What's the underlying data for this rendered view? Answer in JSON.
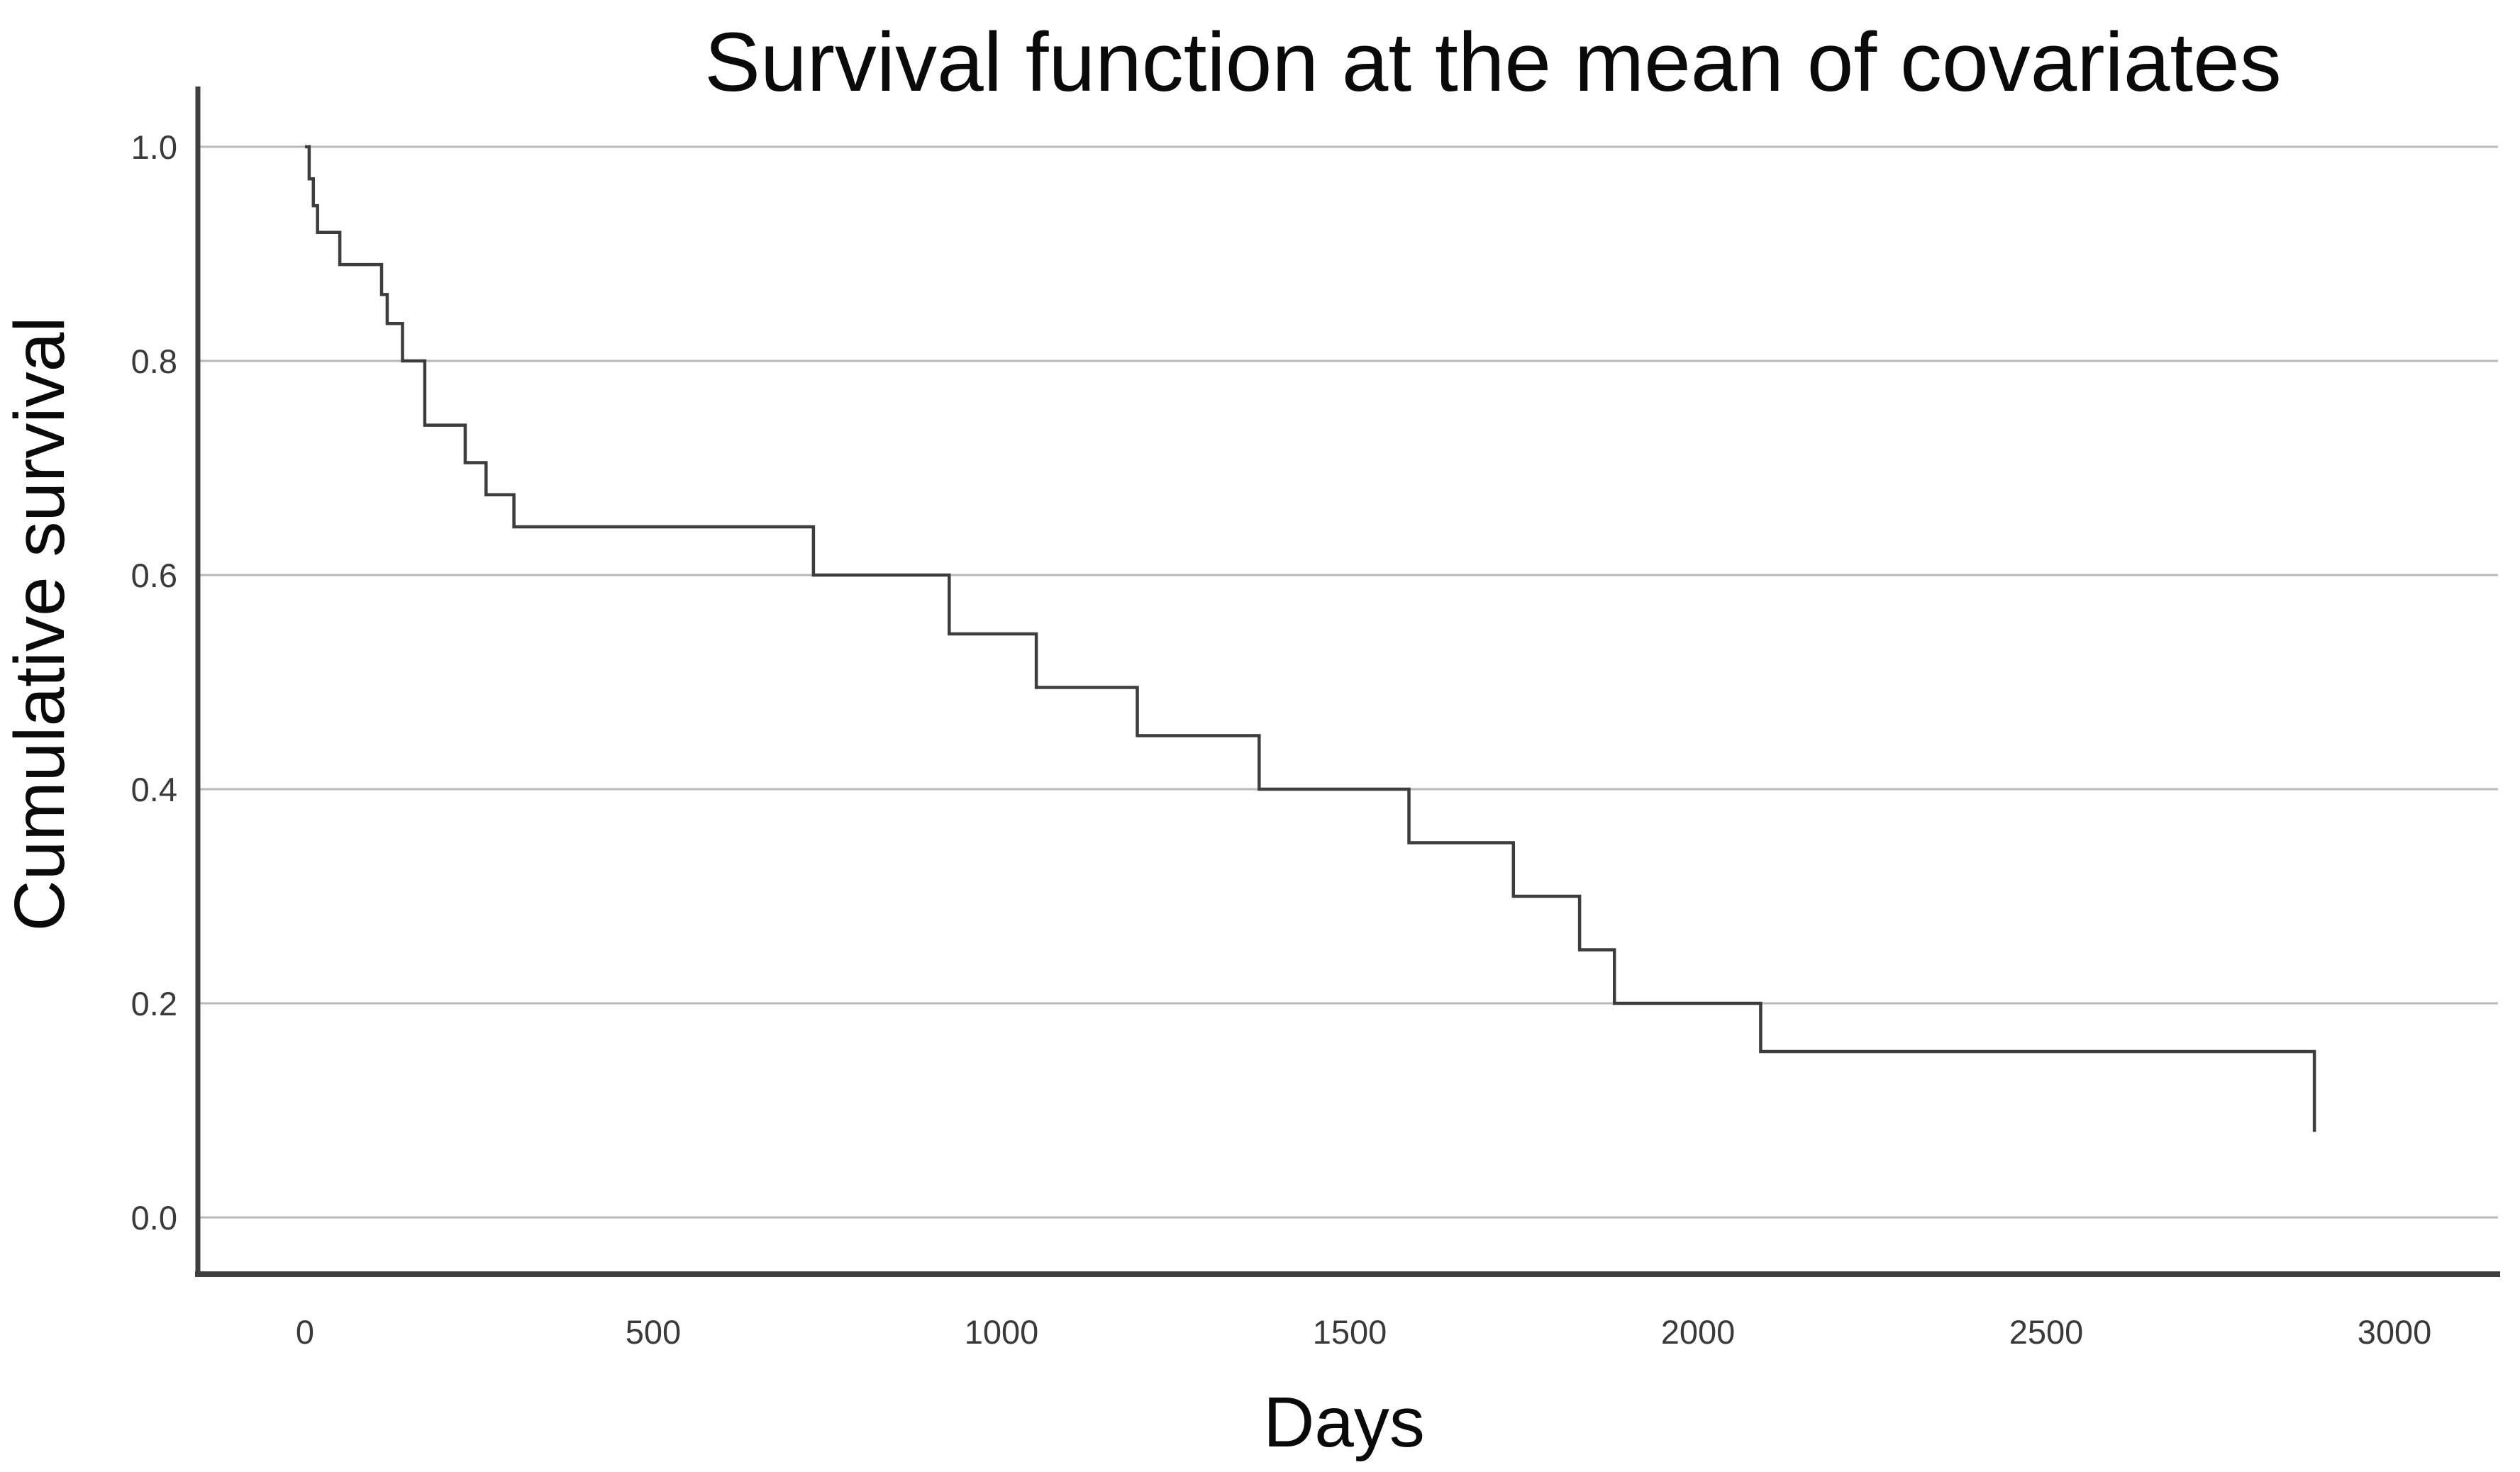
{
  "chart_data": {
    "type": "line",
    "subtype": "step-survival-curve",
    "title": "Survival function at the mean of covariates",
    "xlabel": "Days",
    "ylabel": "Cumulative survival",
    "legend": null,
    "grid": "horizontal-only",
    "x_ticks": [
      0,
      500,
      1000,
      1500,
      2000,
      2500,
      3000
    ],
    "y_ticks": [
      "0.0",
      "0.2",
      "0.4",
      "0.6",
      "0.8",
      "1.0"
    ],
    "y_tick_values": [
      0.0,
      0.2,
      0.4,
      0.6,
      0.8,
      1.0
    ],
    "xlim": [
      -155,
      3150
    ],
    "ylim": [
      -0.053,
      1.057
    ],
    "series": [
      {
        "name": "Survival function",
        "points": [
          [
            0,
            1.0
          ],
          [
            6,
            0.97
          ],
          [
            12,
            0.945
          ],
          [
            18,
            0.92
          ],
          [
            50,
            0.89
          ],
          [
            110,
            0.862
          ],
          [
            118,
            0.835
          ],
          [
            140,
            0.8
          ],
          [
            172,
            0.74
          ],
          [
            230,
            0.705
          ],
          [
            260,
            0.675
          ],
          [
            300,
            0.645
          ],
          [
            730,
            0.6
          ],
          [
            925,
            0.545
          ],
          [
            1050,
            0.495
          ],
          [
            1195,
            0.45
          ],
          [
            1370,
            0.4
          ],
          [
            1585,
            0.35
          ],
          [
            1735,
            0.3
          ],
          [
            1830,
            0.25
          ],
          [
            1880,
            0.2
          ],
          [
            2090,
            0.155
          ],
          [
            2885,
            0.08
          ]
        ],
        "ends_with_drop": true
      }
    ],
    "colors": {
      "curve": "#3d3d3d",
      "gridline": "#b9b9b9",
      "axis": "#3f3f3f",
      "tick_label": "#3a3a3a",
      "text": "#0a0a0a",
      "background": "#ffffff"
    }
  }
}
